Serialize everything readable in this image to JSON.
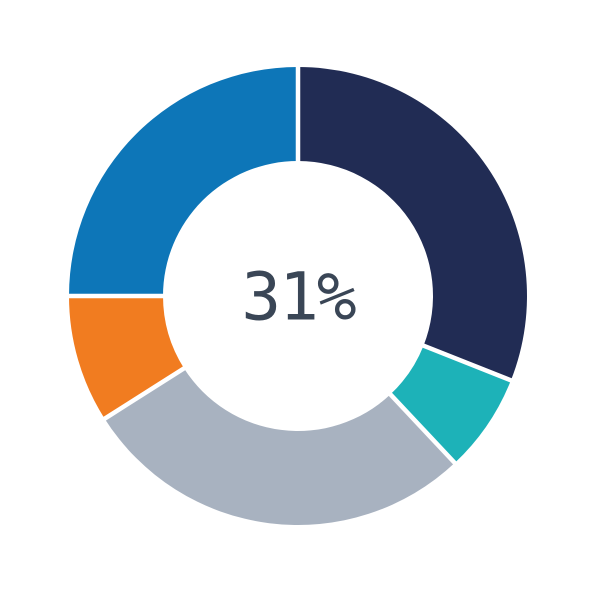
{
  "chart_data": {
    "type": "pie",
    "subtype": "donut",
    "title": "",
    "center_label": "31%",
    "center_label_color": "#3a4656",
    "direction": "clockwise",
    "start_angle_deg": 0,
    "inner_radius_ratio": 0.59,
    "separator_color": "#ffffff",
    "separator_width": 4.5,
    "backdrop_color": "#ffffff",
    "legend": "none",
    "segments": [
      {
        "label": "navy",
        "value": 31,
        "color": "#212c54"
      },
      {
        "label": "teal",
        "value": 7,
        "color": "#1db2b8"
      },
      {
        "label": "gray",
        "value": 28,
        "color": "#a8b2c0"
      },
      {
        "label": "orange",
        "value": 9,
        "color": "#f17c20"
      },
      {
        "label": "blue",
        "value": 25,
        "color": "#0d76b8"
      }
    ]
  }
}
